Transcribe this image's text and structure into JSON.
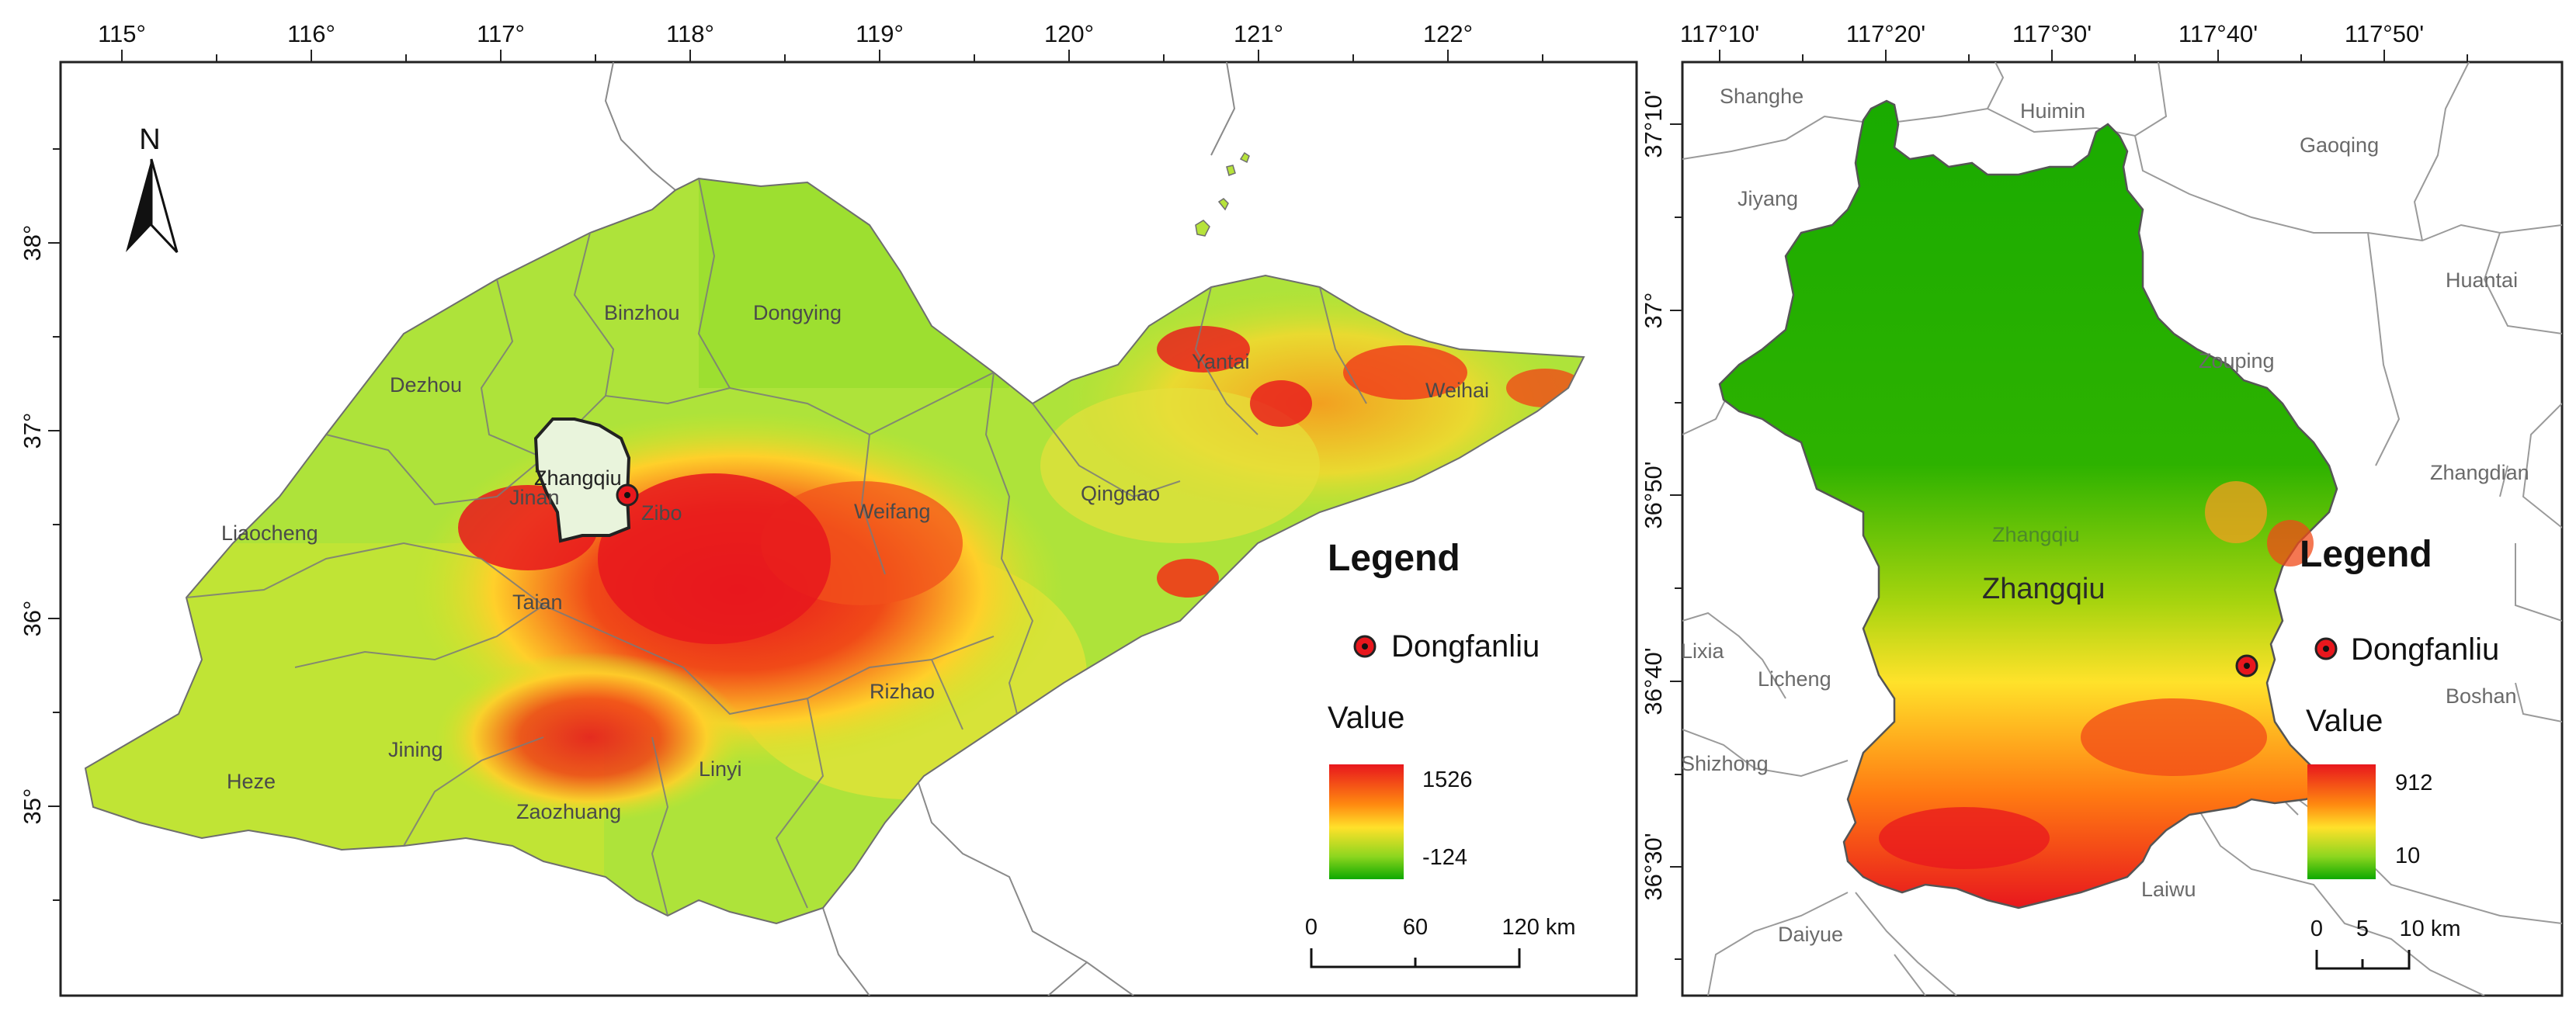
{
  "left_map": {
    "lon_ticks": [
      "115°",
      "116°",
      "117°",
      "118°",
      "119°",
      "120°",
      "121°",
      "122°"
    ],
    "lat_ticks": [
      "38°",
      "37°",
      "36°",
      "35°"
    ],
    "north_arrow": "N",
    "place_labels": {
      "binzhou": "Binzhou",
      "dongying": "Dongying",
      "dezhou": "Dezhou",
      "yantai": "Yantai",
      "weihai": "Weihai",
      "liaocheng": "Liaocheng",
      "zhangqiu": "Zhangqiu",
      "jinan": "Jinan",
      "zibo": "Zibo",
      "weifang": "Weifang",
      "qingdao": "Qingdao",
      "taian": "Taian",
      "rizhao": "Rizhao",
      "heze": "Heze",
      "jining": "Jining",
      "linyi": "Linyi",
      "zaozhuang": "Zaozhuang"
    },
    "legend": {
      "title": "Legend",
      "site_label": "Dongfanliu",
      "value_title": "Value",
      "max": "1526",
      "min": "-124"
    },
    "scalebar": {
      "labels": [
        "0",
        "60",
        "120 km"
      ]
    }
  },
  "right_map": {
    "lon_ticks": [
      "117°10'",
      "117°20'",
      "117°30'",
      "117°40'",
      "117°50'"
    ],
    "lat_ticks": [
      "37°10'",
      "37°",
      "36°50'",
      "36°40'",
      "36°30'"
    ],
    "place_labels": {
      "shanghe": "Shanghe",
      "huimin": "Huimin",
      "gaoqing": "Gaoqing",
      "jiyang": "Jiyang",
      "huantai": "Huantai",
      "zouping": "Zouping",
      "zhangdian": "Zhangdian",
      "zhangqiu_small": "Zhangqiu",
      "zhangqiu_big": "Zhangqiu",
      "lixia": "Lixia",
      "licheng": "Licheng",
      "shizhong": "Shizhong",
      "laiwu": "Laiwu",
      "daiyue": "Daiyue",
      "boshan": "Boshan"
    },
    "legend": {
      "title": "Legend",
      "site_label": "Dongfanliu",
      "value_title": "Value",
      "max": "912",
      "min": "10"
    },
    "scalebar": {
      "labels": [
        "0",
        "5",
        "10 km"
      ]
    }
  },
  "colors": {
    "dem_high": "#e8171d",
    "dem_mid": "#ffd02a",
    "dem_low": "#0ea900",
    "lowland": "#aee33a",
    "boundary": "#6e6e6e"
  }
}
